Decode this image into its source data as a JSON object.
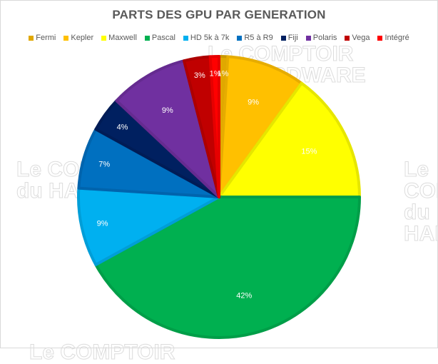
{
  "chart_data": {
    "type": "pie",
    "title": "PARTS DES GPU PAR GENERATION",
    "legend_position": "top",
    "start_angle_deg": 0,
    "direction": "clockwise",
    "categories": [
      "Fermi",
      "Kepler",
      "Maxwell",
      "Pascal",
      "HD 5k à 7k",
      "R5 à R9",
      "Fiji",
      "Polaris",
      "Vega",
      "Intégré"
    ],
    "values": [
      1,
      9,
      15,
      42,
      9,
      7,
      4,
      9,
      3,
      1
    ],
    "labels": [
      "1%",
      "9%",
      "15%",
      "42%",
      "9%",
      "7%",
      "4%",
      "9%",
      "3%",
      "1%"
    ],
    "colors": [
      "#E0A800",
      "#FFC000",
      "#FFFF00",
      "#00B050",
      "#00B0F0",
      "#0070C0",
      "#002060",
      "#7030A0",
      "#C00000",
      "#FF0000"
    ],
    "border_colors": [
      "#C99700",
      "#E6AC00",
      "#E6E600",
      "#009E48",
      "#009ED8",
      "#0064AD",
      "#001C56",
      "#652B90",
      "#AD0000",
      "#E60000"
    ],
    "label_radius_frac": [
      0.88,
      0.72,
      0.72,
      0.72,
      0.85,
      0.85,
      0.85,
      0.72,
      0.88,
      0.88
    ],
    "center": [
      306,
      275
    ],
    "radius": 197
  },
  "watermarks": [
    {
      "line1": "Le COMPTOIR",
      "line2": "du HARDWARE"
    }
  ]
}
